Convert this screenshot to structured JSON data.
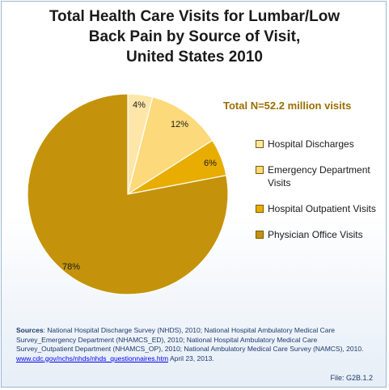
{
  "chart_data": {
    "type": "pie",
    "title": "Total Health Care Visits for Lumbar/Low\nBack Pain by Source of Visit,\nUnited States 2010",
    "subtitle": "Total N=52.2 million visits",
    "slices": [
      {
        "name": "Hospital Discharges",
        "value": 4,
        "label": "4%",
        "color": "#fde6a8"
      },
      {
        "name": "Emergency Department Visits",
        "value": 12,
        "label": "12%",
        "color": "#fcd97a"
      },
      {
        "name": "Hospital Outpatient Visits",
        "value": 6,
        "label": "6%",
        "color": "#e8ad00"
      },
      {
        "name": "Physician Office Visits",
        "value": 78,
        "label": "78%",
        "color": "#c4930b"
      }
    ],
    "legend_position": "right"
  },
  "sources": {
    "label": "Sources",
    "text": ": National Hospital Discharge Survey (NHDS), 2010;  National Hospital Ambulatory Medical Care Survey_Emergency Department (NHAMCS_ED), 2010;  National Hospital Ambulatory Medical Care Survey_Outpatient Department (NHAMCS_OP), 2010;  National Ambulatory Medical Care Survey (NAMCS), 2010.  ",
    "link": "www.cdc.gov/nchs/nhds/nhds_questionnaires.htm",
    "date": " April 23, 2013."
  },
  "file_label": "File: G2B.1.2"
}
